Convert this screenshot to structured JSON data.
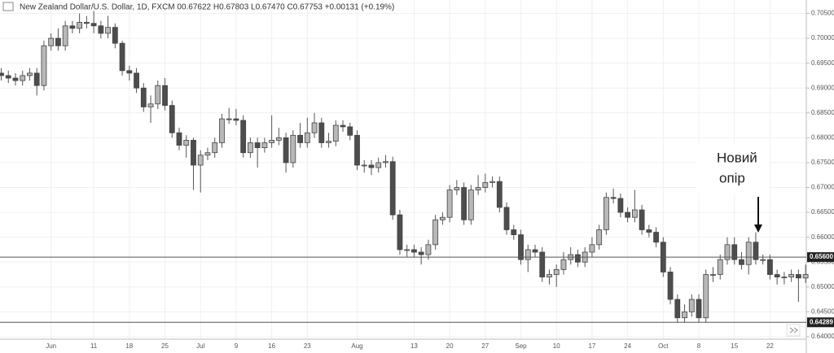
{
  "chart_data": {
    "type": "candlestick",
    "title": "New Zealand Dollar/U.S. Dollar, 1D, FXCM 00.67622 H0.67803 L0.67470 C0.67753 +0.00131 (+0.19%)",
    "categories": [
      null,
      null,
      null,
      null,
      null,
      null,
      null,
      "Jun",
      null,
      null,
      null,
      null,
      null,
      "11",
      null,
      null,
      null,
      null,
      "18",
      null,
      null,
      null,
      null,
      "25",
      null,
      null,
      null,
      null,
      "Jul",
      null,
      null,
      null,
      null,
      "9",
      null,
      null,
      null,
      null,
      "16",
      null,
      null,
      null,
      null,
      "23",
      null,
      null,
      null,
      null,
      null,
      null,
      "Aug",
      null,
      null,
      null,
      null,
      null,
      null,
      null,
      "13",
      null,
      null,
      null,
      null,
      "20",
      null,
      null,
      null,
      null,
      "27",
      null,
      null,
      null,
      null,
      "Sep",
      null,
      null,
      null,
      null,
      "10",
      null,
      null,
      null,
      null,
      "17",
      null,
      null,
      null,
      null,
      "24",
      null,
      null,
      null,
      null,
      "Oct",
      null,
      null,
      null,
      null,
      "8",
      null,
      null,
      null,
      null,
      "15",
      null,
      null,
      null,
      null,
      "22",
      null,
      null,
      null,
      null,
      null
    ],
    "open": [
      0.693,
      0.6925,
      0.692,
      0.6915,
      0.6925,
      0.693,
      0.6905,
      0.6985,
      0.7,
      0.6985,
      0.7025,
      0.702,
      0.7032,
      0.703,
      0.7025,
      0.701,
      0.7022,
      0.699,
      0.6935,
      0.693,
      0.69,
      0.6862,
      0.6868,
      0.6905,
      0.6865,
      0.681,
      0.6785,
      0.6795,
      0.6745,
      0.6765,
      0.677,
      0.679,
      0.6838,
      0.6838,
      0.6835,
      0.677,
      0.679,
      0.678,
      0.679,
      0.6795,
      0.68,
      0.675,
      0.6805,
      0.679,
      0.681,
      0.683,
      0.679,
      0.6793,
      0.6825,
      0.6822,
      0.6805,
      0.6745,
      0.6745,
      0.674,
      0.675,
      0.6752,
      0.6645,
      0.6575,
      0.6575,
      0.657,
      0.6565,
      0.6585,
      0.6635,
      0.664,
      0.6695,
      0.67,
      0.6635,
      0.6695,
      0.67,
      0.671,
      0.6712,
      0.666,
      0.6615,
      0.6605,
      0.6555,
      0.6575,
      0.657,
      0.652,
      0.6525,
      0.6535,
      0.6555,
      0.6565,
      0.655,
      0.657,
      0.6585,
      0.6615,
      0.668,
      0.6678,
      0.665,
      0.664,
      0.6655,
      0.6615,
      0.661,
      0.659,
      0.653,
      0.6475,
      0.6438,
      0.645,
      0.6475,
      0.6438,
      0.6525,
      0.6525,
      0.6555,
      0.6585,
      0.6555,
      0.6545,
      0.659,
      0.6555,
      0.6555,
      0.6525,
      0.652,
      0.652,
      0.6525,
      0.6518
    ],
    "high": [
      0.694,
      0.6935,
      0.693,
      0.6935,
      0.694,
      0.694,
      0.6995,
      0.701,
      0.702,
      0.7035,
      0.7035,
      0.705,
      0.7045,
      0.7055,
      0.7035,
      0.7045,
      0.703,
      0.6995,
      0.6945,
      0.694,
      0.691,
      0.6885,
      0.6915,
      0.692,
      0.6875,
      0.682,
      0.6805,
      0.68,
      0.6775,
      0.678,
      0.68,
      0.6848,
      0.686,
      0.6858,
      0.6845,
      0.68,
      0.68,
      0.68,
      0.6845,
      0.682,
      0.681,
      0.6815,
      0.683,
      0.684,
      0.685,
      0.684,
      0.681,
      0.6835,
      0.6835,
      0.683,
      0.6815,
      0.6755,
      0.6755,
      0.676,
      0.6765,
      0.6762,
      0.6655,
      0.6585,
      0.6585,
      0.658,
      0.6595,
      0.6645,
      0.665,
      0.6705,
      0.6715,
      0.671,
      0.6705,
      0.6725,
      0.6728,
      0.6722,
      0.6722,
      0.667,
      0.6625,
      0.6615,
      0.6585,
      0.6585,
      0.658,
      0.6535,
      0.6545,
      0.657,
      0.658,
      0.6575,
      0.658,
      0.66,
      0.6625,
      0.669,
      0.6698,
      0.6688,
      0.666,
      0.6695,
      0.6665,
      0.6625,
      0.662,
      0.66,
      0.654,
      0.6485,
      0.6465,
      0.6485,
      0.6485,
      0.6535,
      0.654,
      0.6565,
      0.66,
      0.66,
      0.657,
      0.66,
      0.661,
      0.6565,
      0.6565,
      0.6535,
      0.653,
      0.6535,
      0.6535,
      0.6545
    ],
    "low": [
      0.6915,
      0.691,
      0.6905,
      0.6905,
      0.6915,
      0.6885,
      0.6895,
      0.6975,
      0.6975,
      0.6975,
      0.701,
      0.701,
      0.702,
      0.701,
      0.7,
      0.7,
      0.698,
      0.6925,
      0.6915,
      0.689,
      0.6852,
      0.683,
      0.6858,
      0.6855,
      0.68,
      0.6775,
      0.676,
      0.6695,
      0.669,
      0.6755,
      0.676,
      0.678,
      0.6828,
      0.6825,
      0.676,
      0.676,
      0.674,
      0.677,
      0.678,
      0.6785,
      0.673,
      0.674,
      0.678,
      0.678,
      0.68,
      0.678,
      0.678,
      0.6783,
      0.6812,
      0.6795,
      0.6735,
      0.673,
      0.6725,
      0.673,
      0.674,
      0.6635,
      0.6565,
      0.656,
      0.656,
      0.6545,
      0.6555,
      0.6575,
      0.6625,
      0.663,
      0.6685,
      0.6625,
      0.6625,
      0.6685,
      0.669,
      0.67,
      0.665,
      0.6605,
      0.6595,
      0.6545,
      0.653,
      0.656,
      0.651,
      0.6505,
      0.65,
      0.6525,
      0.6545,
      0.654,
      0.654,
      0.656,
      0.6575,
      0.6605,
      0.6668,
      0.664,
      0.663,
      0.663,
      0.6605,
      0.66,
      0.658,
      0.652,
      0.6465,
      0.6428,
      0.6428,
      0.644,
      0.6428,
      0.6428,
      0.651,
      0.6515,
      0.6545,
      0.6545,
      0.6535,
      0.6525,
      0.6545,
      0.6545,
      0.6515,
      0.6505,
      0.6505,
      0.651,
      0.647,
      0.6508
    ],
    "close": [
      0.6925,
      0.692,
      0.6915,
      0.6925,
      0.693,
      0.6905,
      0.6985,
      0.7,
      0.6985,
      0.7025,
      0.702,
      0.7032,
      0.703,
      0.7025,
      0.701,
      0.7022,
      0.699,
      0.6935,
      0.693,
      0.69,
      0.6862,
      0.6868,
      0.6905,
      0.6865,
      0.681,
      0.6785,
      0.6795,
      0.6745,
      0.6765,
      0.677,
      0.679,
      0.6838,
      0.6838,
      0.6835,
      0.677,
      0.679,
      0.678,
      0.679,
      0.6795,
      0.68,
      0.675,
      0.6805,
      0.679,
      0.681,
      0.683,
      0.679,
      0.6793,
      0.6825,
      0.6822,
      0.6805,
      0.6745,
      0.6745,
      0.674,
      0.675,
      0.6752,
      0.6645,
      0.6575,
      0.6575,
      0.657,
      0.6565,
      0.6585,
      0.6635,
      0.664,
      0.6695,
      0.67,
      0.6635,
      0.6695,
      0.67,
      0.671,
      0.6712,
      0.666,
      0.6615,
      0.6605,
      0.6555,
      0.6575,
      0.657,
      0.652,
      0.6525,
      0.6535,
      0.6555,
      0.6565,
      0.655,
      0.657,
      0.6585,
      0.6615,
      0.668,
      0.6678,
      0.665,
      0.664,
      0.6655,
      0.6615,
      0.661,
      0.659,
      0.653,
      0.6475,
      0.6438,
      0.645,
      0.6475,
      0.6438,
      0.6525,
      0.6525,
      0.6555,
      0.6585,
      0.6555,
      0.6545,
      0.659,
      0.6555,
      0.6555,
      0.6525,
      0.652,
      0.652,
      0.6525,
      0.6518,
      0.6525
    ],
    "up_color": "#b8b8b8",
    "down_color": "#4d4d4d",
    "ylim": [
      0.6395,
      0.7077
    ],
    "yticks": [
      {
        "value": 0.705,
        "label": "0.70500"
      },
      {
        "value": 0.7,
        "label": "0.70000"
      },
      {
        "value": 0.695,
        "label": "0.69500"
      },
      {
        "value": 0.69,
        "label": "0.69000"
      },
      {
        "value": 0.685,
        "label": "0.68500"
      },
      {
        "value": 0.68,
        "label": "0.68000"
      },
      {
        "value": 0.675,
        "label": "0.67500"
      },
      {
        "value": 0.67,
        "label": "0.67000"
      },
      {
        "value": 0.665,
        "label": "0.66500"
      },
      {
        "value": 0.66,
        "label": "0.66000"
      },
      {
        "value": 0.655,
        "label": "0.65500"
      },
      {
        "value": 0.65,
        "label": "0.65000"
      },
      {
        "value": 0.645,
        "label": "0.64500"
      },
      {
        "value": 0.64,
        "label": "0.64000"
      }
    ],
    "price_lines": [
      {
        "value": 0.656,
        "label": "0.65600"
      },
      {
        "value": 0.64289,
        "label": "0.64289"
      }
    ],
    "annotation": [
      "Новий",
      "опір"
    ],
    "grid": true
  }
}
